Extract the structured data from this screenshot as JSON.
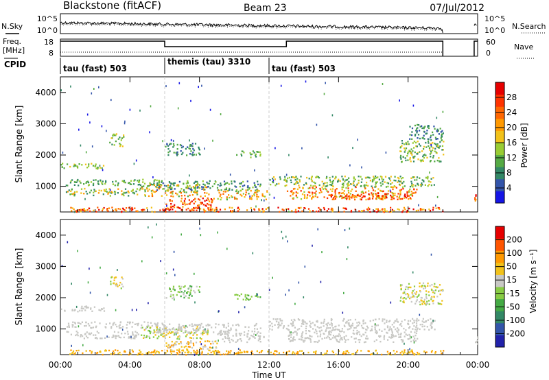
{
  "header": {
    "station": "Blackstone (fitACF)",
    "beam": "Beam 23",
    "date": "07/Jul/2012"
  },
  "strip": {
    "nsky_label": "N.Sky",
    "nsearch_label": "N.Search",
    "noise_tick_top": "10^5",
    "noise_tick_bottom": "10^0",
    "freq_label": "Freq.",
    "freq_unit": "[MHz]",
    "freq_ticks": [
      "18",
      "8"
    ],
    "nave_label": "Nave",
    "nave_ticks": [
      "60",
      "0"
    ],
    "cpid_label": "CPID",
    "cpid_segments": [
      {
        "label": "tau (fast) 503",
        "start_h": 0,
        "end_h": 6
      },
      {
        "label": "themis (tau) 3310",
        "start_h": 6,
        "end_h": 12
      },
      {
        "label": "tau (fast) 503",
        "start_h": 12,
        "end_h": 24
      }
    ],
    "freq_steps": [
      {
        "start_h": 0,
        "end_h": 6,
        "mhz": 18
      },
      {
        "start_h": 6,
        "end_h": 13,
        "mhz": 13
      },
      {
        "start_h": 13,
        "end_h": 22,
        "mhz": 18
      },
      {
        "start_h": 23.8,
        "end_h": 24,
        "mhz": 18
      }
    ],
    "data_gap_h": [
      22,
      23.8
    ]
  },
  "colorbars": {
    "power": {
      "label": "Power [dB]",
      "ticks": [
        "4",
        "8",
        "12",
        "16",
        "20",
        "24",
        "28"
      ],
      "colors": [
        "#1515e6",
        "#3355aa",
        "#338866",
        "#55aa44",
        "#99cc33",
        "#f2c21a",
        "#ff9900",
        "#ff6600",
        "#ff3300",
        "#e60000"
      ]
    },
    "velocity": {
      "label": "Velocity [m s^-1]",
      "ticks": [
        "200",
        "100",
        "50",
        "15",
        "-15",
        "-50",
        "-100",
        "-200"
      ],
      "colors": [
        "#2222aa",
        "#3355aa",
        "#338866",
        "#44aa44",
        "#88cc44",
        "#c8c8c4",
        "#f2c21a",
        "#ff9900",
        "#ff5500",
        "#e60000"
      ]
    }
  },
  "chart_data": [
    {
      "type": "heatmap",
      "title": "",
      "ylabel": "Slant Range [km]",
      "xlabel": "",
      "ylim": [
        180,
        4500
      ],
      "xlim_h": [
        0,
        24
      ],
      "y_ticks": [
        "1000",
        "2000",
        "3000",
        "4000"
      ],
      "colorbar": "power",
      "regions": [
        {
          "x": [
            0.0,
            2.5
          ],
          "y": [
            1580,
            1760
          ],
          "level": [
            3,
            5
          ]
        },
        {
          "x": [
            2.8,
            3.6
          ],
          "y": [
            2300,
            2700
          ],
          "level": [
            2,
            5
          ]
        },
        {
          "x": [
            0.3,
            6.0
          ],
          "y": [
            1050,
            1250
          ],
          "level": [
            2,
            4
          ]
        },
        {
          "x": [
            0.3,
            4.5
          ],
          "y": [
            720,
            950
          ],
          "level": [
            2,
            6
          ]
        },
        {
          "x": [
            4.5,
            8.5
          ],
          "y": [
            700,
            1100
          ],
          "level": [
            3,
            7
          ]
        },
        {
          "x": [
            5.5,
            11.5
          ],
          "y": [
            900,
            1200
          ],
          "level": [
            1,
            4
          ]
        },
        {
          "x": [
            6.0,
            9.0
          ],
          "y": [
            250,
            650
          ],
          "level": [
            6,
            9
          ]
        },
        {
          "x": [
            9.0,
            12.0
          ],
          "y": [
            600,
            900
          ],
          "level": [
            3,
            7
          ]
        },
        {
          "x": [
            6.0,
            8.0
          ],
          "y": [
            2000,
            2400
          ],
          "level": [
            1,
            3
          ]
        },
        {
          "x": [
            10.0,
            11.5
          ],
          "y": [
            1950,
            2150
          ],
          "level": [
            2,
            4
          ]
        },
        {
          "x": [
            12.0,
            21.5
          ],
          "y": [
            1000,
            1350
          ],
          "level": [
            2,
            5
          ]
        },
        {
          "x": [
            13.0,
            20.5
          ],
          "y": [
            600,
            1000
          ],
          "level": [
            4,
            8
          ]
        },
        {
          "x": [
            15.5,
            20.0
          ],
          "y": [
            600,
            800
          ],
          "level": [
            6,
            9
          ]
        },
        {
          "x": [
            19.5,
            22.0
          ],
          "y": [
            1800,
            2500
          ],
          "level": [
            2,
            5
          ]
        },
        {
          "x": [
            20.0,
            22.0
          ],
          "y": [
            2500,
            3000
          ],
          "level": [
            1,
            3
          ]
        },
        {
          "x": [
            0.5,
            22.0
          ],
          "y": [
            200,
            350
          ],
          "level": [
            5,
            9
          ]
        },
        {
          "x": [
            23.8,
            24.0
          ],
          "y": [
            500,
            900
          ],
          "level": [
            6,
            9
          ]
        }
      ]
    },
    {
      "type": "heatmap",
      "title": "",
      "ylabel": "Slant Range [km]",
      "xlabel": "Time UT",
      "ylim": [
        180,
        4500
      ],
      "xlim_h": [
        0,
        24
      ],
      "x_ticks": [
        "00:00",
        "04:00",
        "08:00",
        "12:00",
        "16:00",
        "20:00",
        "00:00"
      ],
      "y_ticks": [
        "1000",
        "2000",
        "3000",
        "4000"
      ],
      "colorbar": "velocity",
      "regions": [
        {
          "x": [
            0.0,
            2.5
          ],
          "y": [
            1580,
            1760
          ],
          "level": [
            5,
            5
          ]
        },
        {
          "x": [
            2.8,
            3.6
          ],
          "y": [
            2300,
            2700
          ],
          "level": [
            4,
            6
          ]
        },
        {
          "x": [
            0.3,
            6.0
          ],
          "y": [
            1050,
            1250
          ],
          "level": [
            5,
            5
          ]
        },
        {
          "x": [
            0.3,
            4.5
          ],
          "y": [
            720,
            950
          ],
          "level": [
            5,
            5
          ]
        },
        {
          "x": [
            4.5,
            8.5
          ],
          "y": [
            700,
            1100
          ],
          "level": [
            4,
            6
          ]
        },
        {
          "x": [
            5.5,
            11.5
          ],
          "y": [
            900,
            1200
          ],
          "level": [
            5,
            5
          ]
        },
        {
          "x": [
            6.0,
            9.0
          ],
          "y": [
            250,
            650
          ],
          "level": [
            5,
            7
          ]
        },
        {
          "x": [
            9.0,
            12.0
          ],
          "y": [
            600,
            900
          ],
          "level": [
            5,
            5
          ]
        },
        {
          "x": [
            6.0,
            8.0
          ],
          "y": [
            2000,
            2400
          ],
          "level": [
            3,
            5
          ]
        },
        {
          "x": [
            10.0,
            11.5
          ],
          "y": [
            1950,
            2150
          ],
          "level": [
            3,
            4
          ]
        },
        {
          "x": [
            12.0,
            21.5
          ],
          "y": [
            1000,
            1350
          ],
          "level": [
            5,
            5
          ]
        },
        {
          "x": [
            13.0,
            20.5
          ],
          "y": [
            600,
            1000
          ],
          "level": [
            5,
            5
          ]
        },
        {
          "x": [
            19.5,
            22.0
          ],
          "y": [
            1800,
            2500
          ],
          "level": [
            4,
            6
          ]
        },
        {
          "x": [
            0.5,
            22.0
          ],
          "y": [
            200,
            350
          ],
          "level": [
            6,
            7
          ]
        },
        {
          "x": [
            23.8,
            24.0
          ],
          "y": [
            500,
            900
          ],
          "level": [
            5,
            5
          ]
        }
      ]
    }
  ]
}
